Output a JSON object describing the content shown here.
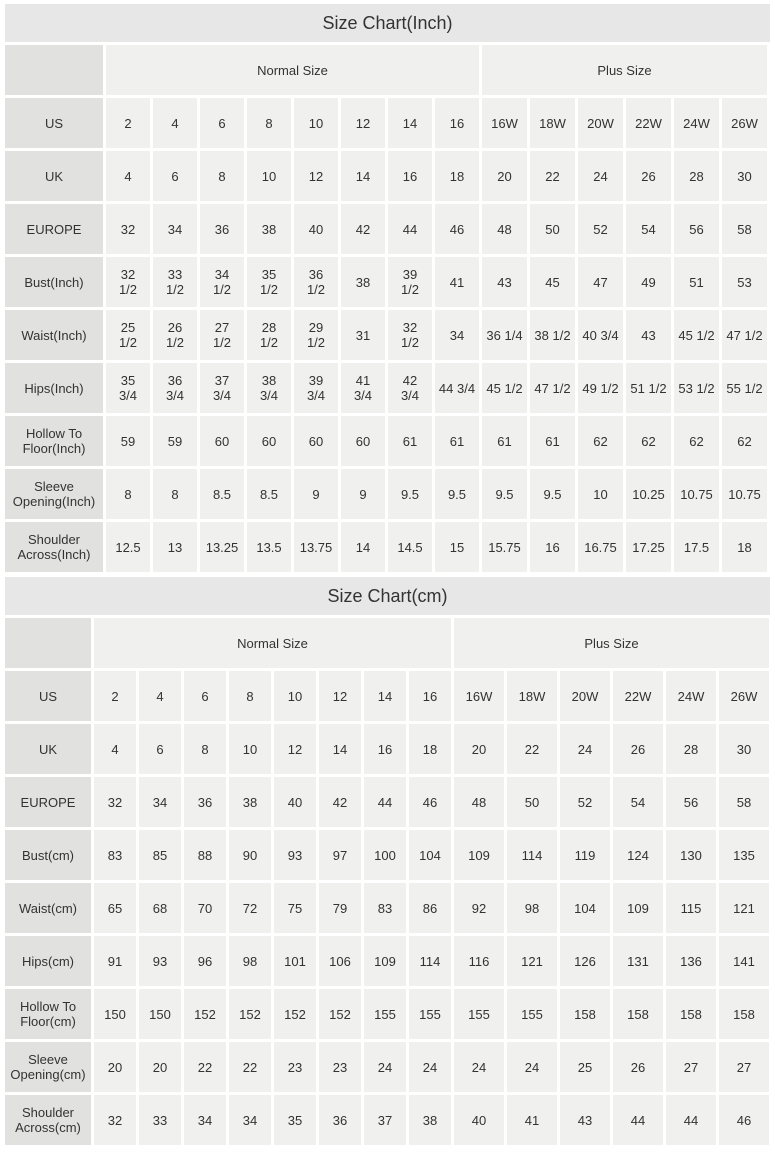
{
  "colors": {
    "title_bar_bg": "#e7e7e7",
    "row_label_bg": "#e1e1e0",
    "data_cell_bg": "#f0f0ef",
    "gap": "#ffffff",
    "text": "#333333"
  },
  "chart_data": [
    {
      "type": "table",
      "title": "Size Chart(Inch)",
      "group_headers": [
        {
          "label": "Normal Size",
          "span": 8
        },
        {
          "label": "Plus Size",
          "span": 6
        }
      ],
      "rows": [
        {
          "label": "US",
          "values": [
            "2",
            "4",
            "6",
            "8",
            "10",
            "12",
            "14",
            "16",
            "16W",
            "18W",
            "20W",
            "22W",
            "24W",
            "26W"
          ]
        },
        {
          "label": "UK",
          "values": [
            "4",
            "6",
            "8",
            "10",
            "12",
            "14",
            "16",
            "18",
            "20",
            "22",
            "24",
            "26",
            "28",
            "30"
          ]
        },
        {
          "label": "EUROPE",
          "values": [
            "32",
            "34",
            "36",
            "38",
            "40",
            "42",
            "44",
            "46",
            "48",
            "50",
            "52",
            "54",
            "56",
            "58"
          ]
        },
        {
          "label": "Bust(Inch)",
          "values": [
            "32\n1/2",
            "33\n1/2",
            "34\n1/2",
            "35\n1/2",
            "36\n1/2",
            "38",
            "39\n1/2",
            "41",
            "43",
            "45",
            "47",
            "49",
            "51",
            "53"
          ]
        },
        {
          "label": "Waist(Inch)",
          "values": [
            "25\n1/2",
            "26\n1/2",
            "27\n1/2",
            "28\n1/2",
            "29\n1/2",
            "31",
            "32\n1/2",
            "34",
            "36 1/4",
            "38 1/2",
            "40 3/4",
            "43",
            "45 1/2",
            "47 1/2"
          ]
        },
        {
          "label": "Hips(Inch)",
          "values": [
            "35\n3/4",
            "36\n3/4",
            "37\n3/4",
            "38\n3/4",
            "39\n3/4",
            "41\n3/4",
            "42\n3/4",
            "44 3/4",
            "45 1/2",
            "47 1/2",
            "49 1/2",
            "51 1/2",
            "53 1/2",
            "55 1/2"
          ]
        },
        {
          "label": "Hollow To\nFloor(Inch)",
          "values": [
            "59",
            "59",
            "60",
            "60",
            "60",
            "60",
            "61",
            "61",
            "61",
            "61",
            "62",
            "62",
            "62",
            "62"
          ]
        },
        {
          "label": "Sleeve\nOpening(Inch)",
          "values": [
            "8",
            "8",
            "8.5",
            "8.5",
            "9",
            "9",
            "9.5",
            "9.5",
            "9.5",
            "9.5",
            "10",
            "10.25",
            "10.75",
            "10.75"
          ]
        },
        {
          "label": "Shoulder\nAcross(Inch)",
          "values": [
            "12.5",
            "13",
            "13.25",
            "13.5",
            "13.75",
            "14",
            "14.5",
            "15",
            "15.75",
            "16",
            "16.75",
            "17.25",
            "17.5",
            "18"
          ]
        }
      ]
    },
    {
      "type": "table",
      "title": "Size Chart(cm)",
      "group_headers": [
        {
          "label": "Normal Size",
          "span": 8
        },
        {
          "label": "Plus Size",
          "span": 6
        }
      ],
      "rows": [
        {
          "label": "US",
          "values": [
            "2",
            "4",
            "6",
            "8",
            "10",
            "12",
            "14",
            "16",
            "16W",
            "18W",
            "20W",
            "22W",
            "24W",
            "26W"
          ]
        },
        {
          "label": "UK",
          "values": [
            "4",
            "6",
            "8",
            "10",
            "12",
            "14",
            "16",
            "18",
            "20",
            "22",
            "24",
            "26",
            "28",
            "30"
          ]
        },
        {
          "label": "EUROPE",
          "values": [
            "32",
            "34",
            "36",
            "38",
            "40",
            "42",
            "44",
            "46",
            "48",
            "50",
            "52",
            "54",
            "56",
            "58"
          ]
        },
        {
          "label": "Bust(cm)",
          "values": [
            "83",
            "85",
            "88",
            "90",
            "93",
            "97",
            "100",
            "104",
            "109",
            "114",
            "119",
            "124",
            "130",
            "135"
          ]
        },
        {
          "label": "Waist(cm)",
          "values": [
            "65",
            "68",
            "70",
            "72",
            "75",
            "79",
            "83",
            "86",
            "92",
            "98",
            "104",
            "109",
            "115",
            "121"
          ]
        },
        {
          "label": "Hips(cm)",
          "values": [
            "91",
            "93",
            "96",
            "98",
            "101",
            "106",
            "109",
            "114",
            "116",
            "121",
            "126",
            "131",
            "136",
            "141"
          ]
        },
        {
          "label": "Hollow To\nFloor(cm)",
          "values": [
            "150",
            "150",
            "152",
            "152",
            "152",
            "152",
            "155",
            "155",
            "155",
            "155",
            "158",
            "158",
            "158",
            "158"
          ]
        },
        {
          "label": "Sleeve\nOpening(cm)",
          "values": [
            "20",
            "20",
            "22",
            "22",
            "23",
            "23",
            "24",
            "24",
            "24",
            "24",
            "25",
            "26",
            "27",
            "27"
          ]
        },
        {
          "label": "Shoulder\nAcross(cm)",
          "values": [
            "32",
            "33",
            "34",
            "34",
            "35",
            "36",
            "37",
            "38",
            "40",
            "41",
            "43",
            "44",
            "44",
            "46"
          ]
        }
      ]
    }
  ]
}
